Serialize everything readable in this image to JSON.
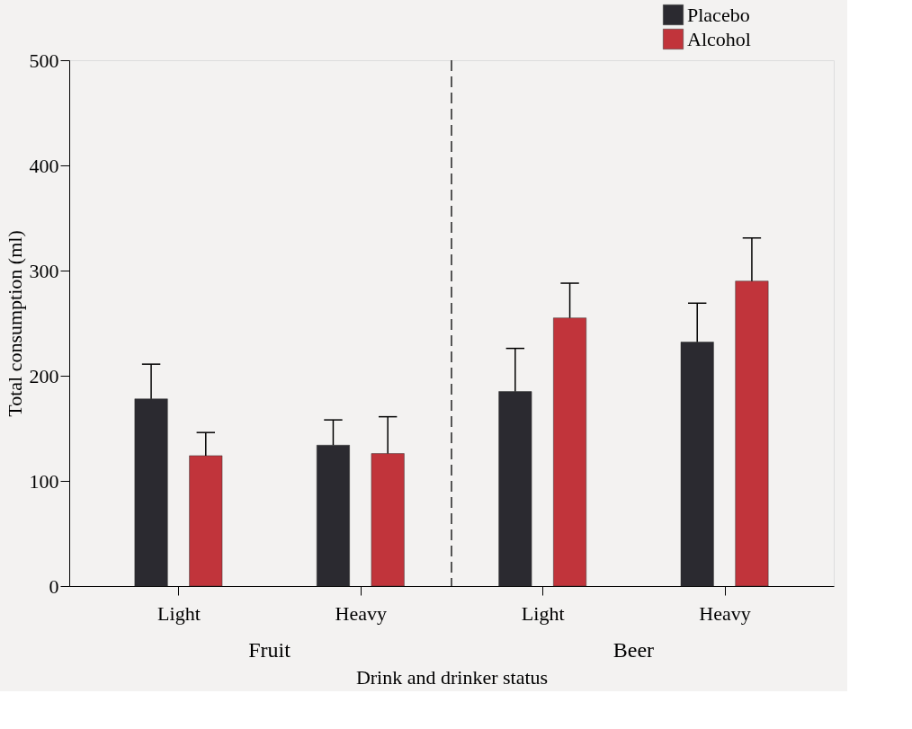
{
  "chart_data": {
    "type": "bar",
    "categories": [
      "Light",
      "Heavy",
      "Light",
      "Heavy"
    ],
    "series": [
      {
        "name": "Placebo",
        "color": "#2b2a30",
        "values": [
          178,
          134,
          185,
          232
        ],
        "errors": [
          [
            178,
            211
          ],
          [
            134,
            158
          ],
          [
            185,
            226
          ],
          [
            232,
            269
          ]
        ]
      },
      {
        "name": "Alcohol",
        "color": "#c1343b",
        "values": [
          124,
          126,
          255,
          290
        ],
        "errors": [
          [
            124,
            146
          ],
          [
            126,
            161
          ],
          [
            255,
            288
          ],
          [
            290,
            331
          ]
        ]
      }
    ],
    "xlabel": "Drink and drinker status",
    "ylabel": "Total consumption (ml)",
    "annotations": [
      "Fruit",
      "Beer"
    ],
    "ylim": [
      0,
      500
    ],
    "yticks": [
      0,
      100,
      200,
      300,
      400,
      500
    ],
    "legend": "top right",
    "grid": false
  }
}
